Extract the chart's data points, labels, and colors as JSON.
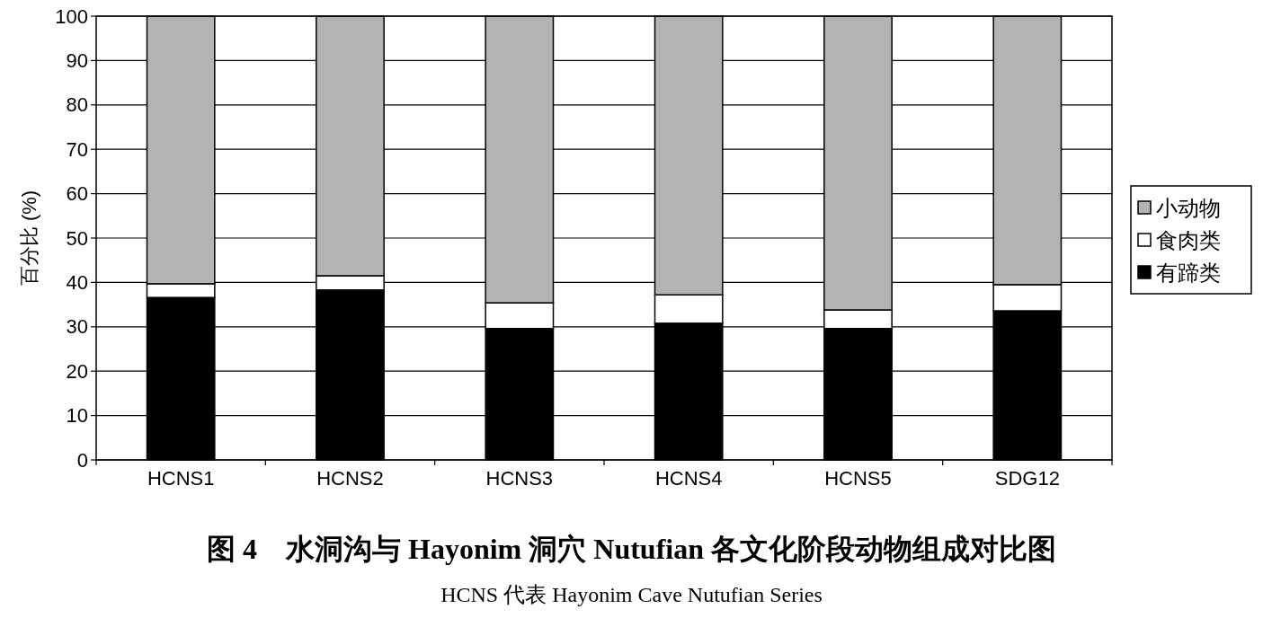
{
  "chart_data": {
    "type": "bar",
    "stacked": true,
    "title": "图 4　水洞沟与 Hayonim 洞穴 Nutufian 各文化阶段动物组成对比图",
    "subtitle": "HCNS 代表 Hayonim Cave Nutufian Series",
    "ylabel": "百分比 (%)",
    "categories": [
      "HCNS1",
      "HCNS2",
      "HCNS3",
      "HCNS4",
      "HCNS5",
      "SDG12"
    ],
    "series": [
      {
        "name": "有蹄类",
        "color": "#000000",
        "values": [
          36.6,
          38.3,
          29.6,
          30.8,
          29.6,
          33.6
        ]
      },
      {
        "name": "食肉类",
        "color": "#ffffff",
        "values": [
          3.1,
          3.2,
          5.8,
          6.4,
          4.2,
          5.9
        ]
      },
      {
        "name": "小动物",
        "color": "#b3b3b3",
        "values": [
          60.3,
          58.5,
          64.6,
          62.8,
          66.2,
          60.5
        ]
      }
    ],
    "ylim": [
      0,
      100
    ],
    "yticks": [
      0,
      10,
      20,
      30,
      40,
      50,
      60,
      70,
      80,
      90,
      100
    ],
    "grid": "y",
    "legend": "right"
  }
}
